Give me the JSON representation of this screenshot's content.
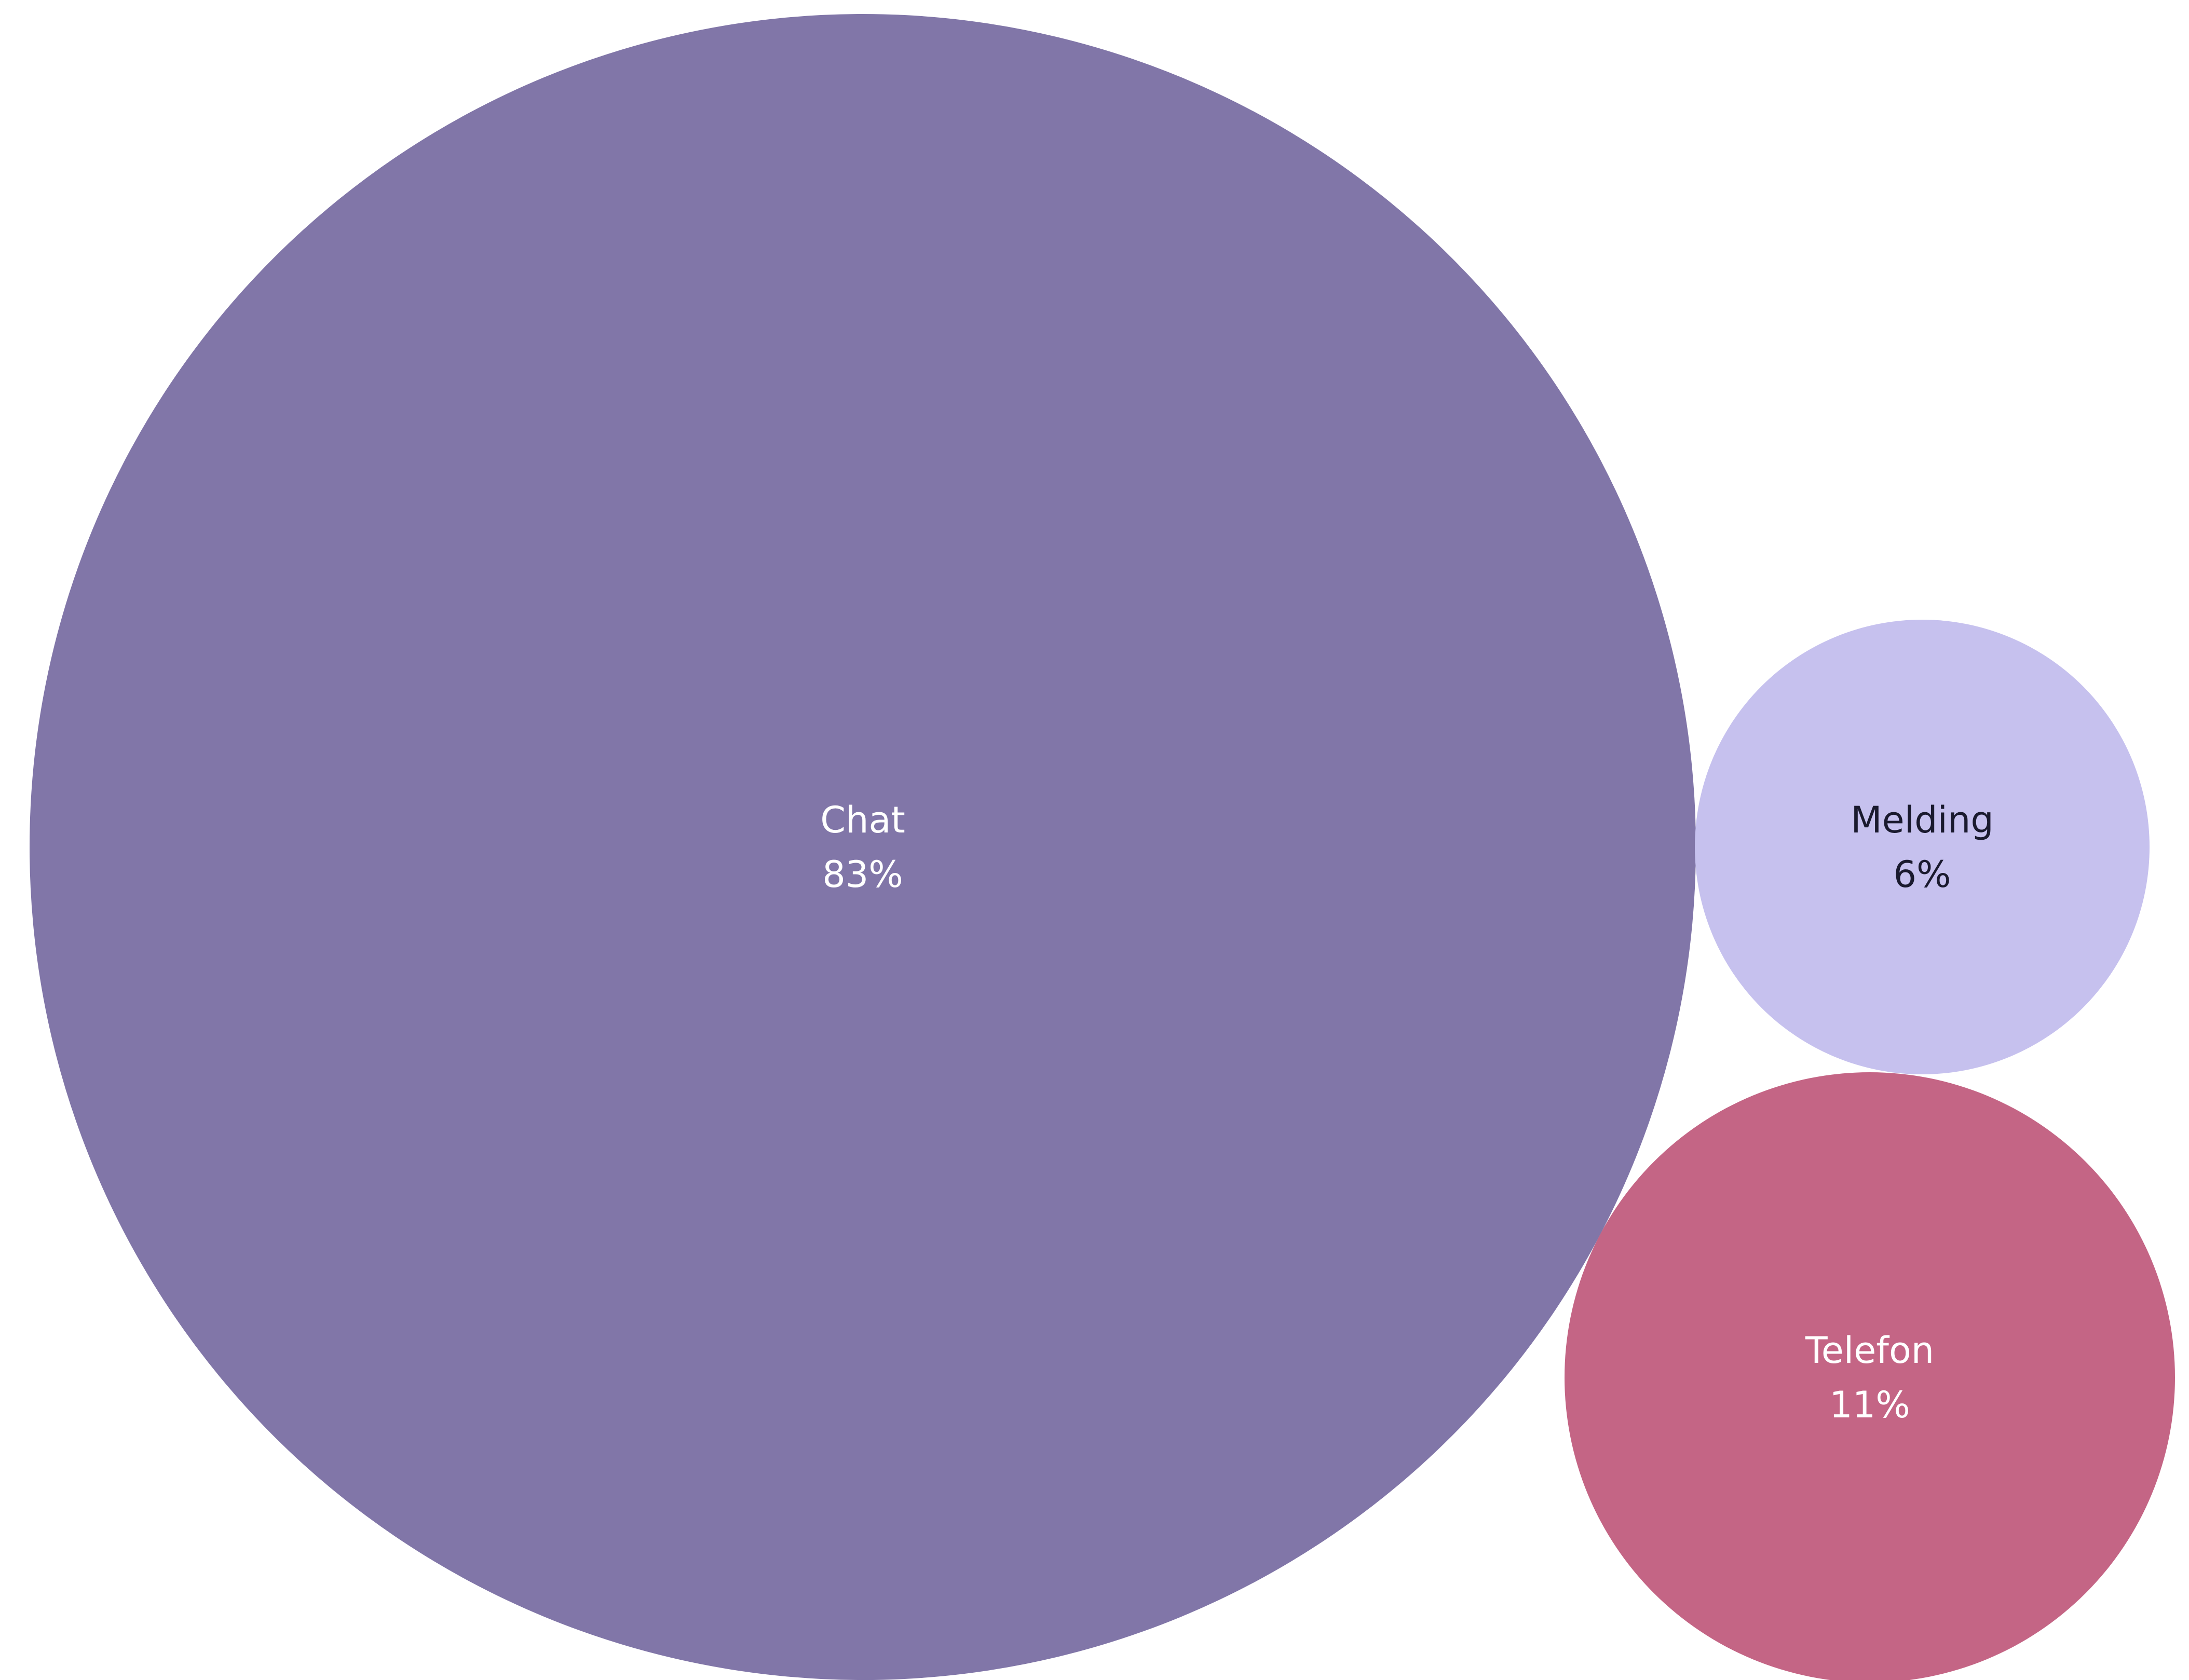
{
  "chart_data": {
    "type": "bubble",
    "series": [
      {
        "label": "Chat",
        "value_label": "83%",
        "value": 83,
        "color": "#8176a8",
        "text_color": "#ffffff"
      },
      {
        "label": "Melding",
        "value_label": "6%",
        "value": 6,
        "color": "#c6c1ee",
        "text_color": "#1a1a2e"
      },
      {
        "label": "Telefon",
        "value_label": "11%",
        "value": 11,
        "color": "#c46585",
        "text_color": "#ffffff"
      }
    ]
  }
}
